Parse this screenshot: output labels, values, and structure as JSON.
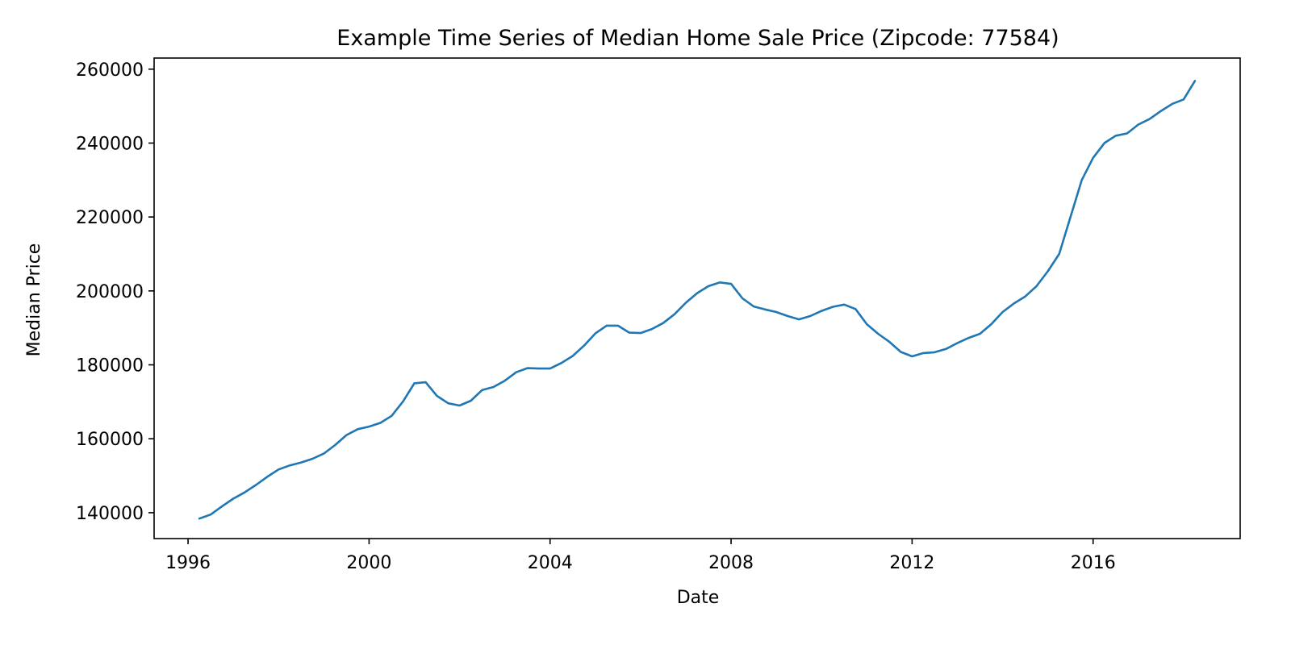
{
  "chart_data": {
    "type": "line",
    "title": "Example Time Series of Median Home Sale Price (Zipcode: 77584)",
    "xlabel": "Date",
    "ylabel": "Median Price",
    "xlim": [
      "1995-04",
      "2019-04"
    ],
    "ylim": [
      133000,
      263000
    ],
    "x_ticks": [
      "1996",
      "2000",
      "2004",
      "2008",
      "2012",
      "2016"
    ],
    "y_ticks": [
      "140000",
      "160000",
      "180000",
      "200000",
      "220000",
      "240000",
      "260000"
    ],
    "grid": false,
    "legend": "none",
    "colors": {
      "line": "#1f77b4",
      "axes": "#000000",
      "background": "#ffffff"
    },
    "series": [
      {
        "x": [
          "1996-04",
          "1996-07",
          "1996-10",
          "1997-01",
          "1997-04",
          "1997-07",
          "1997-10",
          "1998-01",
          "1998-04",
          "1998-07",
          "1998-10",
          "1999-01",
          "1999-04",
          "1999-07",
          "1999-10",
          "2000-01",
          "2000-04",
          "2000-07",
          "2000-10",
          "2001-01",
          "2001-04",
          "2001-07",
          "2001-10",
          "2002-01",
          "2002-04",
          "2002-07",
          "2002-10",
          "2003-01",
          "2003-04",
          "2003-07",
          "2003-10",
          "2004-01",
          "2004-04",
          "2004-07",
          "2004-10",
          "2005-01",
          "2005-04",
          "2005-07",
          "2005-10",
          "2006-01",
          "2006-04",
          "2006-07",
          "2006-10",
          "2007-01",
          "2007-04",
          "2007-07",
          "2007-10",
          "2008-01",
          "2008-04",
          "2008-07",
          "2008-10",
          "2009-01",
          "2009-04",
          "2009-07",
          "2009-10",
          "2010-01",
          "2010-04",
          "2010-07",
          "2010-10",
          "2011-01",
          "2011-04",
          "2011-07",
          "2011-10",
          "2012-01",
          "2012-04",
          "2012-07",
          "2012-10",
          "2013-01",
          "2013-04",
          "2013-07",
          "2013-10",
          "2014-01",
          "2014-04",
          "2014-07",
          "2014-10",
          "2015-01",
          "2015-04",
          "2015-07",
          "2015-10",
          "2016-01",
          "2016-04",
          "2016-07",
          "2016-10",
          "2017-01",
          "2017-04",
          "2017-07",
          "2017-10",
          "2018-01",
          "2018-04"
        ],
        "values": [
          138400,
          139500,
          141700,
          143800,
          145500,
          147500,
          149700,
          151700,
          152800,
          153600,
          154600,
          156000,
          158300,
          161000,
          162600,
          163300,
          164300,
          166200,
          170100,
          175000,
          175300,
          171600,
          169600,
          169000,
          170300,
          173200,
          174000,
          175700,
          178000,
          179100,
          179000,
          179000,
          180500,
          182400,
          185200,
          188500,
          190600,
          190600,
          188700,
          188600,
          189700,
          191300,
          193700,
          196800,
          199400,
          201300,
          202300,
          201900,
          198000,
          195800,
          195000,
          194300,
          193200,
          192300,
          193200,
          194600,
          195700,
          196300,
          195100,
          191000,
          188400,
          186200,
          183500,
          182300,
          183200,
          183400,
          184300,
          185900,
          187300,
          188400,
          191000,
          194300,
          196600,
          198500,
          201300,
          205300,
          210000,
          220000,
          230000,
          236000,
          240000,
          242000,
          242600,
          245000,
          246500,
          248700,
          250600,
          251800,
          256800
        ]
      }
    ]
  }
}
